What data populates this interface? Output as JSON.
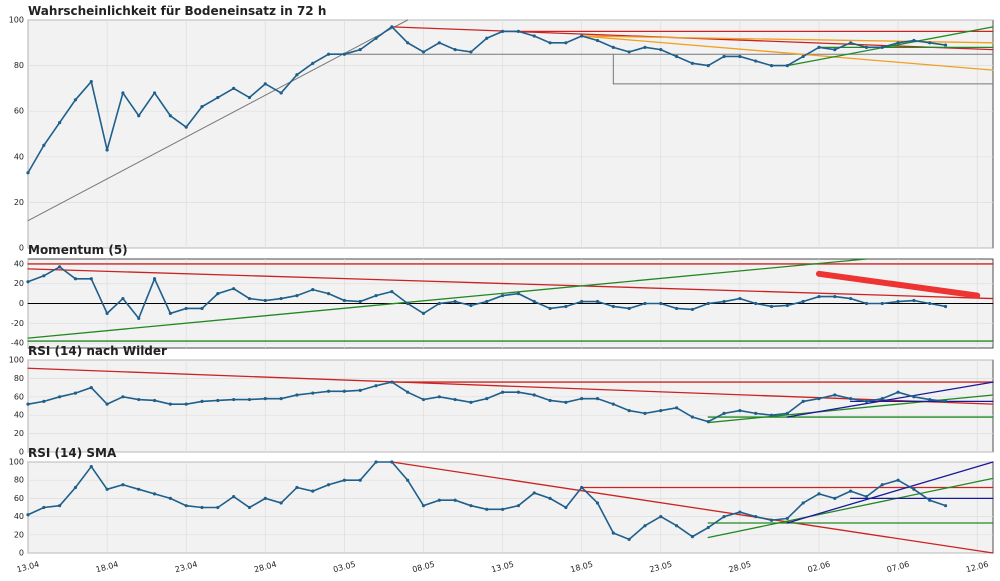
{
  "chart_data": [
    {
      "type": "line",
      "title": "Wahrscheinlichkeit für Bodeneinsatz in 72 h",
      "x": [
        "13.04",
        "14.04",
        "15.04",
        "16.04",
        "17.04",
        "18.04",
        "19.04",
        "20.04",
        "21.04",
        "22.04",
        "23.04",
        "24.04",
        "25.04",
        "26.04",
        "27.04",
        "28.04",
        "29.04",
        "30.04",
        "01.05",
        "02.05",
        "03.05",
        "04.05",
        "05.05",
        "06.05",
        "07.05",
        "08.05",
        "09.05",
        "10.05",
        "11.05",
        "12.05",
        "13.05",
        "14.05",
        "15.05",
        "16.05",
        "17.05",
        "18.05",
        "19.05",
        "20.05",
        "21.05",
        "22.05",
        "23.05",
        "24.05",
        "25.05",
        "26.05",
        "27.05",
        "28.05",
        "29.05",
        "30.05",
        "31.05",
        "01.06",
        "02.06",
        "03.06",
        "04.06",
        "05.06",
        "06.06",
        "07.06",
        "08.06",
        "09.06",
        "10.06"
      ],
      "xlim": [
        "13.04",
        "13.06"
      ],
      "series": [
        {
          "color": "#1f5f8b",
          "values": [
            33,
            45,
            55,
            65,
            73,
            43,
            68,
            58,
            68,
            58,
            53,
            62,
            66,
            70,
            66,
            72,
            68,
            76,
            81,
            85,
            85,
            87,
            92,
            97,
            90,
            86,
            90,
            87,
            86,
            92,
            95,
            95,
            93,
            90,
            90,
            93,
            91,
            88,
            86,
            88,
            87,
            84,
            81,
            80,
            84,
            84,
            82,
            80,
            80,
            84,
            88,
            87,
            90,
            88,
            88,
            90,
            91,
            90,
            89
          ]
        }
      ],
      "ylim": [
        0,
        100
      ],
      "yticks": [
        0,
        20,
        40,
        60,
        80,
        100
      ],
      "grid": true,
      "lines": [
        {
          "from": [
            "13.04",
            12
          ],
          "to": [
            "07.05",
            100
          ],
          "color": "#777777",
          "width": 1
        },
        {
          "from": [
            "03.05",
            85
          ],
          "to": [
            "13.06",
            85
          ],
          "color": "#777777",
          "width": 1
        },
        {
          "from": [
            "20.05",
            85
          ],
          "to": [
            "20.05",
            72
          ],
          "color": "#777777",
          "width": 1
        },
        {
          "from": [
            "20.05",
            72
          ],
          "to": [
            "13.06",
            72
          ],
          "color": "#777777",
          "width": 1
        },
        {
          "from": [
            "06.05",
            97
          ],
          "to": [
            "13.06",
            87
          ],
          "color": "#cc2222",
          "width": 1.3
        },
        {
          "from": [
            "13.05",
            95
          ],
          "to": [
            "13.06",
            95
          ],
          "color": "#cc2222",
          "width": 1.3
        },
        {
          "from": [
            "18.05",
            93
          ],
          "to": [
            "13.06",
            78
          ],
          "color": "#f0a020",
          "width": 1.3
        },
        {
          "from": [
            "18.05",
            93
          ],
          "to": [
            "13.06",
            90
          ],
          "color": "#f0a020",
          "width": 1.3
        },
        {
          "from": [
            "31.05",
            80
          ],
          "to": [
            "13.06",
            97
          ],
          "color": "#228822",
          "width": 1.3
        },
        {
          "from": [
            "02.06",
            88
          ],
          "to": [
            "13.06",
            88
          ],
          "color": "#228822",
          "width": 1.3
        }
      ]
    },
    {
      "type": "line",
      "title": "Momentum (5)",
      "series": [
        {
          "color": "#1f5f8b",
          "values": [
            22,
            28,
            37,
            25,
            25,
            -10,
            5,
            -15,
            25,
            -10,
            -5,
            -5,
            10,
            15,
            5,
            3,
            5,
            8,
            14,
            10,
            3,
            2,
            8,
            12,
            0,
            -10,
            0,
            2,
            -2,
            2,
            8,
            10,
            2,
            -5,
            -3,
            2,
            2,
            -3,
            -5,
            0,
            0,
            -5,
            -6,
            0,
            2,
            5,
            0,
            -3,
            -2,
            2,
            7,
            7,
            5,
            0,
            0,
            2,
            3,
            0,
            -3
          ]
        }
      ],
      "ylim": [
        -45,
        45
      ],
      "yticks": [
        -40,
        -20,
        0,
        20,
        40
      ],
      "grid": true,
      "lines": [
        {
          "from": [
            "13.04",
            0
          ],
          "to": [
            "13.06",
            0
          ],
          "color": "#000000",
          "width": 1
        },
        {
          "from": [
            "13.04",
            40
          ],
          "to": [
            "13.06",
            40
          ],
          "color": "#cc2222",
          "width": 1.3
        },
        {
          "from": [
            "13.04",
            35
          ],
          "to": [
            "13.06",
            5
          ],
          "color": "#cc2222",
          "width": 1.3
        },
        {
          "from": [
            "13.04",
            -35
          ],
          "to": [
            "05.06",
            45
          ],
          "color": "#228822",
          "width": 1.3
        },
        {
          "from": [
            "13.04",
            -38
          ],
          "to": [
            "13.06",
            -38
          ],
          "color": "#228822",
          "width": 1.3
        },
        {
          "from": [
            "02.06",
            30
          ],
          "to": [
            "12.06",
            8
          ],
          "color": "#ee3333",
          "width": 6
        }
      ]
    },
    {
      "type": "line",
      "title": "RSI (14) nach Wilder",
      "series": [
        {
          "color": "#1f5f8b",
          "values": [
            52,
            55,
            60,
            64,
            70,
            52,
            60,
            57,
            56,
            52,
            52,
            55,
            56,
            57,
            57,
            58,
            58,
            62,
            64,
            66,
            66,
            67,
            72,
            76,
            65,
            57,
            60,
            57,
            54,
            58,
            65,
            65,
            62,
            56,
            54,
            58,
            58,
            52,
            45,
            42,
            45,
            48,
            38,
            33,
            42,
            45,
            42,
            40,
            42,
            55,
            58,
            62,
            58,
            55,
            58,
            65,
            60,
            57,
            55
          ]
        }
      ],
      "ylim": [
        0,
        100
      ],
      "yticks": [
        0,
        20,
        40,
        60,
        80,
        100
      ],
      "grid": true,
      "lines": [
        {
          "from": [
            "13.04",
            91
          ],
          "to": [
            "13.06",
            52
          ],
          "color": "#cc2222",
          "width": 1.3
        },
        {
          "from": [
            "06.05",
            76
          ],
          "to": [
            "13.06",
            76
          ],
          "color": "#cc2222",
          "width": 1.3
        },
        {
          "from": [
            "26.05",
            32
          ],
          "to": [
            "13.06",
            62
          ],
          "color": "#228822",
          "width": 1.3
        },
        {
          "from": [
            "26.05",
            38
          ],
          "to": [
            "13.06",
            38
          ],
          "color": "#228822",
          "width": 1.3
        },
        {
          "from": [
            "31.05",
            38
          ],
          "to": [
            "13.06",
            76
          ],
          "color": "#1a1a99",
          "width": 1.3
        },
        {
          "from": [
            "04.06",
            55
          ],
          "to": [
            "13.06",
            55
          ],
          "color": "#1a1a99",
          "width": 1.3
        }
      ]
    },
    {
      "type": "line",
      "title": "RSI (14) SMA",
      "xticks": [
        "13.04",
        "18.04",
        "23.04",
        "28.04",
        "03.05",
        "08.05",
        "13.05",
        "18.05",
        "23.05",
        "28.05",
        "02.06",
        "07.06",
        "12.06"
      ],
      "series": [
        {
          "color": "#1f5f8b",
          "values": [
            42,
            50,
            52,
            72,
            95,
            70,
            75,
            70,
            65,
            60,
            52,
            50,
            50,
            62,
            50,
            60,
            55,
            72,
            68,
            75,
            80,
            80,
            100,
            100,
            80,
            52,
            58,
            58,
            52,
            48,
            48,
            52,
            66,
            60,
            50,
            72,
            55,
            22,
            15,
            30,
            40,
            30,
            18,
            28,
            40,
            45,
            40,
            36,
            38,
            55,
            65,
            60,
            68,
            62,
            75,
            80,
            70,
            58,
            52
          ]
        }
      ],
      "ylim": [
        0,
        100
      ],
      "yticks": [
        0,
        20,
        40,
        60,
        80,
        100
      ],
      "grid": true,
      "lines": [
        {
          "from": [
            "06.05",
            100
          ],
          "to": [
            "13.06",
            0
          ],
          "color": "#cc2222",
          "width": 1.3
        },
        {
          "from": [
            "18.05",
            72
          ],
          "to": [
            "13.06",
            72
          ],
          "color": "#cc2222",
          "width": 1.3
        },
        {
          "from": [
            "26.05",
            17
          ],
          "to": [
            "13.06",
            82
          ],
          "color": "#228822",
          "width": 1.3
        },
        {
          "from": [
            "26.05",
            33
          ],
          "to": [
            "13.06",
            33
          ],
          "color": "#228822",
          "width": 1.3
        },
        {
          "from": [
            "31.05",
            33
          ],
          "to": [
            "13.06",
            100
          ],
          "color": "#1a1a99",
          "width": 1.3
        },
        {
          "from": [
            "04.06",
            60
          ],
          "to": [
            "13.06",
            60
          ],
          "color": "#1a1a99",
          "width": 1.3
        }
      ]
    }
  ]
}
